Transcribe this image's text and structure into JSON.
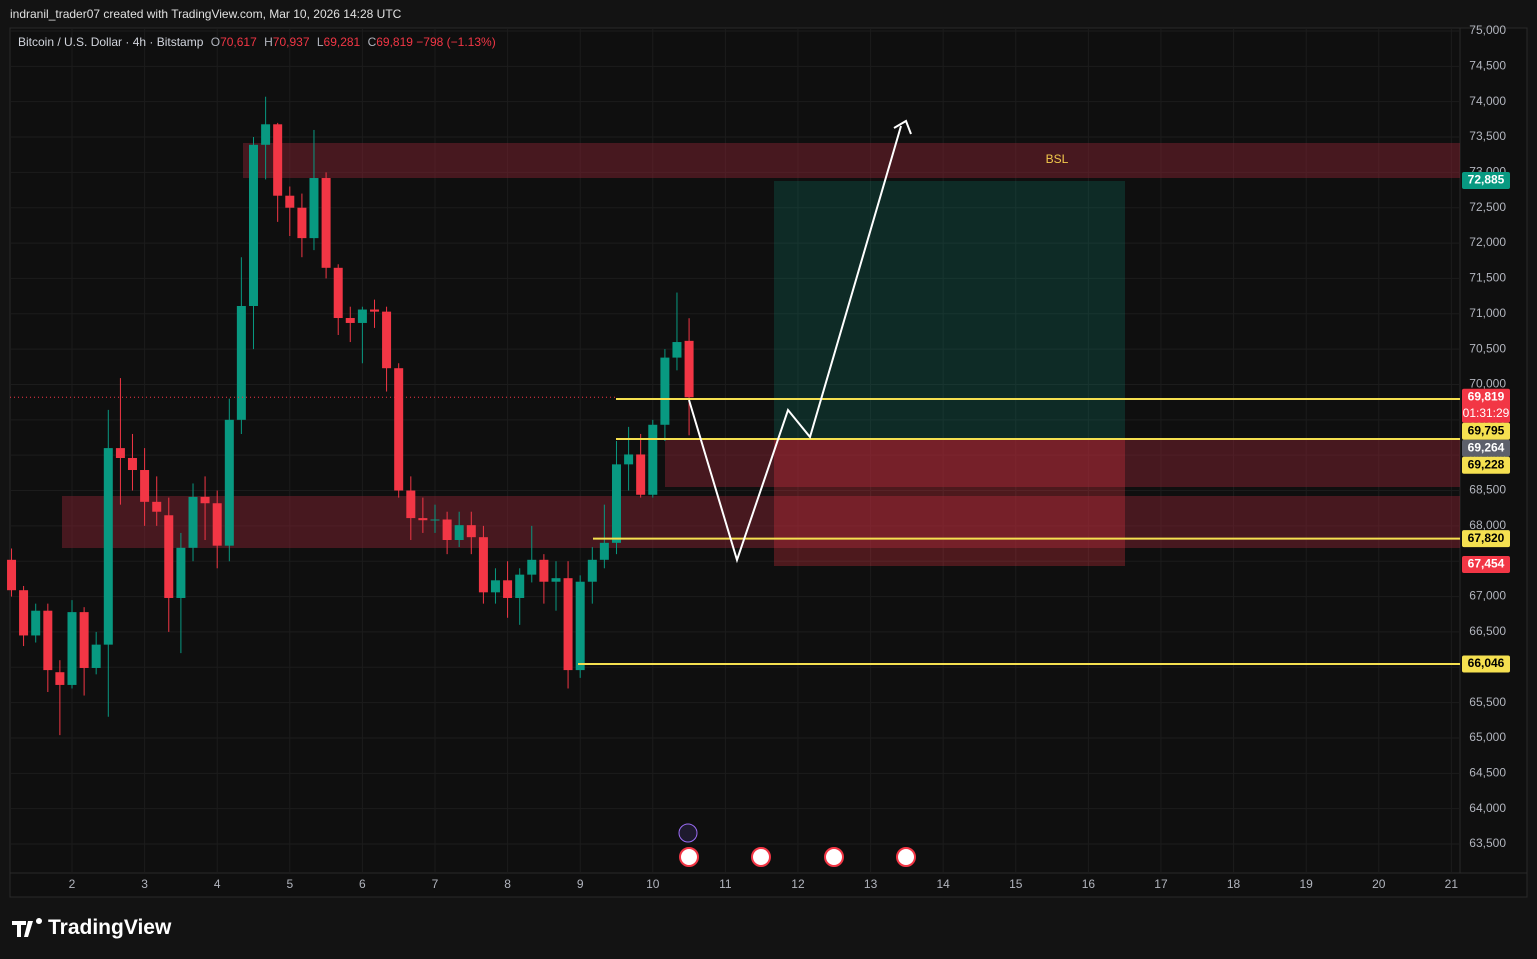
{
  "header": {
    "credit": "indranil_trader07 created with TradingView.com, Mar 10, 2026 14:28 UTC",
    "symbol": "Bitcoin / U.S. Dollar · 4h · Bitstamp",
    "o_label": "O",
    "o_value": "70,617",
    "h_label": "H",
    "h_value": "70,937",
    "l_label": "L",
    "l_value": "69,281",
    "c_label": "C",
    "c_value": "69,819",
    "change": "−798 (−1.13%)"
  },
  "footer": {
    "brand": "TradingView"
  },
  "chart_data": {
    "type": "candlestick",
    "up_color": "#089981",
    "down_color": "#f23645",
    "x": [
      1.167,
      1.333,
      1.5,
      1.667,
      1.833,
      2,
      2.167,
      2.333,
      2.5,
      2.667,
      2.833,
      3,
      3.167,
      3.333,
      3.5,
      3.667,
      3.833,
      4,
      4.167,
      4.333,
      4.5,
      4.667,
      4.833,
      5,
      5.167,
      5.333,
      5.5,
      5.667,
      5.833,
      6,
      6.167,
      6.333,
      6.5,
      6.667,
      6.833,
      7,
      7.167,
      7.333,
      7.5,
      7.667,
      7.833,
      8,
      8.167,
      8.333,
      8.5,
      8.667,
      8.833,
      9,
      9.167,
      9.333,
      9.5,
      9.667,
      9.833,
      10,
      10.167,
      10.333,
      10.5
    ],
    "open": [
      67520,
      67090,
      66450,
      66800,
      65930,
      65750,
      66780,
      65990,
      66320,
      69100,
      68960,
      68790,
      68340,
      68150,
      66980,
      67690,
      68410,
      68320,
      67720,
      69500,
      71110,
      73390,
      73680,
      72670,
      72500,
      72070,
      72920,
      71650,
      70940,
      70870,
      71060,
      71030,
      70230,
      68500,
      68110,
      68080,
      68090,
      67800,
      68010,
      67840,
      67060,
      67230,
      66980,
      67310,
      67520,
      67210,
      67260,
      65960,
      67210,
      67520,
      67760,
      68870,
      69010,
      68440,
      69430,
      70380,
      70617
    ],
    "high": [
      67680,
      67150,
      66900,
      66900,
      66100,
      66950,
      66850,
      66500,
      69640,
      70090,
      69300,
      69100,
      68700,
      68400,
      67900,
      68600,
      68700,
      68500,
      69800,
      71800,
      73500,
      74070,
      73700,
      72800,
      72700,
      73600,
      73000,
      71700,
      71100,
      71100,
      71200,
      71100,
      70300,
      68700,
      68400,
      68300,
      68200,
      68200,
      68200,
      68000,
      67400,
      67500,
      67400,
      68000,
      67600,
      67500,
      67500,
      67300,
      67700,
      68300,
      69200,
      69400,
      69300,
      69500,
      70500,
      71300,
      70937
    ],
    "low": [
      67000,
      66300,
      66350,
      65650,
      65040,
      65700,
      65600,
      65900,
      65300,
      68300,
      68500,
      68000,
      68000,
      66500,
      66200,
      67500,
      67800,
      67400,
      67500,
      69300,
      70500,
      72900,
      72300,
      72100,
      71800,
      71900,
      71500,
      70700,
      70600,
      70300,
      70800,
      69900,
      68400,
      67800,
      67900,
      67900,
      67600,
      67700,
      67600,
      66900,
      66900,
      66700,
      66600,
      67200,
      66900,
      66800,
      65700,
      65850,
      66900,
      67400,
      67600,
      68500,
      68400,
      68400,
      69200,
      70200,
      69281
    ],
    "close": [
      67090,
      66450,
      66800,
      65960,
      65750,
      66780,
      65990,
      66320,
      69100,
      68960,
      68790,
      68340,
      68200,
      66980,
      67690,
      68410,
      68320,
      67720,
      69500,
      71110,
      73390,
      73680,
      72670,
      72500,
      72070,
      72920,
      71650,
      70940,
      70870,
      71060,
      71030,
      70230,
      68500,
      68110,
      68080,
      68090,
      67800,
      68010,
      67840,
      67060,
      67230,
      66980,
      67310,
      67520,
      67210,
      67260,
      65960,
      67210,
      67520,
      67760,
      68870,
      69010,
      68440,
      69430,
      70380,
      70600,
      69819
    ],
    "xlim": [
      1.146,
      21.119
    ],
    "xticks": [
      2,
      3,
      4,
      5,
      6,
      7,
      8,
      9,
      10,
      11,
      12,
      13,
      14,
      15,
      16,
      17,
      18,
      19,
      20,
      21
    ],
    "ylim": [
      63090,
      75042
    ],
    "yticks": [
      {
        "value": 63500,
        "label": "63,500"
      },
      {
        "value": 64000,
        "label": "64,000"
      },
      {
        "value": 64500,
        "label": "64,500"
      },
      {
        "value": 65000,
        "label": "65,000"
      },
      {
        "value": 65500,
        "label": "65,500"
      },
      {
        "value": 66000,
        "label": "66,000"
      },
      {
        "value": 66500,
        "label": "66,500"
      },
      {
        "value": 67000,
        "label": "67,000"
      },
      {
        "value": 67500,
        "label": "67,500"
      },
      {
        "value": 68000,
        "label": "68,000"
      },
      {
        "value": 68500,
        "label": "68,500"
      },
      {
        "value": 69000,
        "label": "69,000"
      },
      {
        "value": 69500,
        "label": "69,500"
      },
      {
        "value": 70000,
        "label": "70,000"
      },
      {
        "value": 70500,
        "label": "70,500"
      },
      {
        "value": 71000,
        "label": "71,000"
      },
      {
        "value": 71500,
        "label": "71,500"
      },
      {
        "value": 72000,
        "label": "72,000"
      },
      {
        "value": 72500,
        "label": "72,500"
      },
      {
        "value": 73000,
        "label": "73,000"
      },
      {
        "value": 73500,
        "label": "73,500"
      },
      {
        "value": 74000,
        "label": "74,000"
      },
      {
        "value": 74500,
        "label": "74,500"
      },
      {
        "value": 75000,
        "label": "75,000"
      }
    ],
    "annotations": {
      "zone_label": "BSL"
    },
    "price_labels": [
      {
        "value": 72885,
        "label": "72,885",
        "color": "#089981",
        "text_color": "#ffffff"
      },
      {
        "value": 69819,
        "label": "69,819",
        "sublabel": "01:31:29",
        "color": "#f23645",
        "text_color": "#ffffff"
      },
      {
        "value": 69795,
        "label": "69,795",
        "color": "#f5e050",
        "text_color": "#000000"
      },
      {
        "value": 69264,
        "label": "69,264",
        "color": "#5d606b",
        "text_color": "#ffffff"
      },
      {
        "value": 69228,
        "label": "69,228",
        "color": "#f5e050",
        "text_color": "#000000"
      },
      {
        "value": 67820,
        "label": "67,820",
        "color": "#f5e050",
        "text_color": "#000000"
      },
      {
        "value": 67454,
        "label": "67,454",
        "color": "#f23645",
        "text_color": "#ffffff"
      },
      {
        "value": 66046,
        "label": "66,046",
        "color": "#f5e050",
        "text_color": "#000000"
      }
    ]
  }
}
